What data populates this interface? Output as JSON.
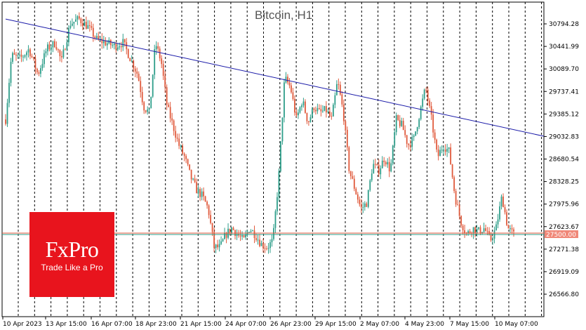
{
  "chart_data": {
    "type": "candlestick",
    "title": "Bitcoin, H1",
    "ylim": [
      26390,
      31000
    ],
    "y_ticks": [
      "30794.28",
      "30441.99",
      "30089.70",
      "29737.41",
      "29385.12",
      "29032.83",
      "28680.54",
      "28328.25",
      "27975.96",
      "27623.67",
      "27271.38",
      "26919.09",
      "26566.80"
    ],
    "x_ticks": [
      "10 Apr 2023",
      "13 Apr 15:00",
      "16 Apr 07:00",
      "18 Apr 23:00",
      "21 Apr 15:00",
      "24 Apr 07:00",
      "26 Apr 23:00",
      "29 Apr 15:00",
      "2 May 07:00",
      "4 May 23:00",
      "7 May 15:00",
      "10 May 07:00"
    ],
    "current_price": "27500.00",
    "price_path": [
      [
        0,
        29300
      ],
      [
        2,
        30300
      ],
      [
        5,
        30250
      ],
      [
        8,
        30400
      ],
      [
        11,
        30000
      ],
      [
        14,
        30400
      ],
      [
        17,
        30500
      ],
      [
        19,
        30200
      ],
      [
        22,
        30800
      ],
      [
        25,
        30870
      ],
      [
        28,
        30750
      ],
      [
        31,
        30550
      ],
      [
        34,
        30500
      ],
      [
        37,
        30450
      ],
      [
        40,
        30500
      ],
      [
        43,
        30200
      ],
      [
        45,
        30000
      ],
      [
        47,
        29500
      ],
      [
        49,
        29400
      ],
      [
        51,
        30500
      ],
      [
        53,
        30200
      ],
      [
        55,
        29500
      ],
      [
        57,
        29200
      ],
      [
        59,
        28900
      ],
      [
        61,
        28700
      ],
      [
        63,
        28400
      ],
      [
        65,
        28200
      ],
      [
        67,
        28100
      ],
      [
        69,
        27900
      ],
      [
        71,
        27300
      ],
      [
        73,
        27300
      ],
      [
        75,
        27500
      ],
      [
        77,
        27600
      ],
      [
        79,
        27500
      ],
      [
        81,
        27400
      ],
      [
        83,
        27600
      ],
      [
        85,
        27500
      ],
      [
        87,
        27350
      ],
      [
        89,
        27300
      ],
      [
        91,
        27400
      ],
      [
        93,
        28400
      ],
      [
        95,
        29950
      ],
      [
        97,
        29800
      ],
      [
        99,
        29300
      ],
      [
        101,
        29600
      ],
      [
        103,
        29250
      ],
      [
        105,
        29500
      ],
      [
        107,
        29400
      ],
      [
        109,
        29450
      ],
      [
        111,
        29300
      ],
      [
        113,
        29900
      ],
      [
        115,
        29400
      ],
      [
        117,
        28500
      ],
      [
        119,
        28200
      ],
      [
        121,
        27900
      ],
      [
        123,
        28000
      ],
      [
        125,
        28600
      ],
      [
        127,
        28500
      ],
      [
        129,
        28700
      ],
      [
        131,
        28500
      ],
      [
        133,
        29300
      ],
      [
        135,
        29200
      ],
      [
        137,
        28900
      ],
      [
        139,
        29000
      ],
      [
        141,
        29400
      ],
      [
        143,
        29800
      ],
      [
        145,
        29300
      ],
      [
        147,
        28700
      ],
      [
        149,
        28900
      ],
      [
        151,
        28800
      ],
      [
        153,
        28100
      ],
      [
        155,
        27700
      ],
      [
        157,
        27500
      ],
      [
        159,
        27600
      ],
      [
        161,
        27550
      ],
      [
        163,
        27600
      ],
      [
        165,
        27400
      ],
      [
        167,
        27600
      ],
      [
        169,
        28100
      ],
      [
        171,
        27600
      ],
      [
        173,
        27500
      ]
    ],
    "trendline": {
      "start": {
        "x": 0,
        "y": 30870
      },
      "end": {
        "x": 173,
        "y": 29140
      }
    },
    "price_line": 27500,
    "colors": {
      "up": "#2e9e8a",
      "down": "#e05a3c",
      "trendline": "#1a1aa8",
      "price_line_up": "#2e9e8a",
      "price_line_down": "#e05a3c",
      "price_label_bg": "#f08878"
    },
    "grid": "vertical-dashed"
  },
  "logo": {
    "brand": "FxPro",
    "tagline": "Trade Like a Pro"
  }
}
